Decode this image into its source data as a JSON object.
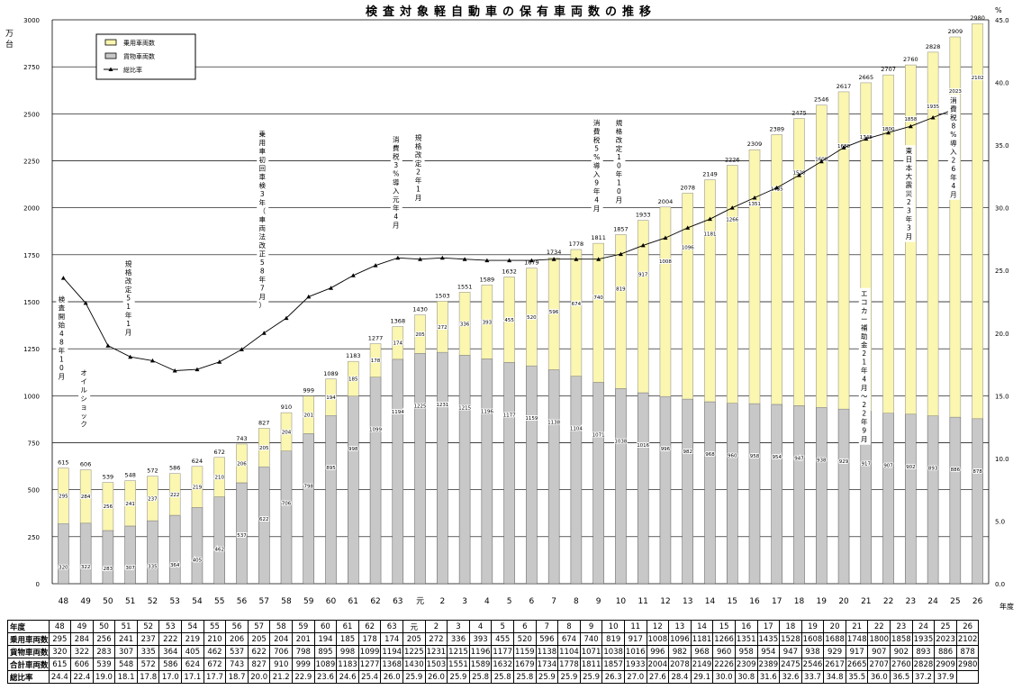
{
  "chart_data": {
    "type": "bar",
    "title": "検査対象軽自動車の保有車両数の推移",
    "left_unit": [
      "万",
      "台"
    ],
    "right_unit": "%",
    "xlabel": "年度",
    "ylim": [
      0,
      3000
    ],
    "y2lim": [
      0,
      45
    ],
    "y_ticks": [
      0,
      250,
      500,
      750,
      1000,
      1250,
      1500,
      1750,
      2000,
      2250,
      2500,
      2750,
      3000
    ],
    "y2_ticks": [
      "0.0",
      "5.0",
      "10.0",
      "15.0",
      "20.0",
      "25.0",
      "30.0",
      "35.0",
      "40.0",
      "45.0"
    ],
    "grid": true,
    "legend_position": "top-left",
    "colors": {
      "passenger": "#fbf6b0",
      "cargo": "#c8c8c8",
      "line": "#000000"
    },
    "categories": [
      "48",
      "49",
      "50",
      "51",
      "52",
      "53",
      "54",
      "55",
      "56",
      "57",
      "58",
      "59",
      "60",
      "61",
      "62",
      "63",
      "元",
      "2",
      "3",
      "4",
      "5",
      "6",
      "7",
      "8",
      "9",
      "10",
      "11",
      "12",
      "13",
      "14",
      "15",
      "16",
      "17",
      "18",
      "19",
      "20",
      "21",
      "22",
      "23",
      "24",
      "25",
      "26"
    ],
    "series": [
      {
        "name": "乗用車両数",
        "values": [
          295,
          284,
          256,
          241,
          237,
          222,
          219,
          210,
          206,
          205,
          204,
          201,
          194,
          185,
          178,
          174,
          205,
          272,
          336,
          393,
          455,
          520,
          596,
          674,
          740,
          819,
          917,
          1008,
          1096,
          1181,
          1266,
          1351,
          1435,
          1528,
          1608,
          1688,
          1748,
          1800,
          1858,
          1935,
          2023,
          2102
        ]
      },
      {
        "name": "貨物車両数",
        "values": [
          320,
          322,
          283,
          307,
          335,
          364,
          405,
          462,
          537,
          622,
          706,
          798,
          895,
          998,
          1099,
          1194,
          1225,
          1231,
          1215,
          1196,
          1177,
          1159,
          1138,
          1104,
          1071,
          1038,
          1016,
          996,
          982,
          968,
          960,
          958,
          954,
          947,
          938,
          929,
          917,
          907,
          902,
          893,
          886,
          878
        ]
      },
      {
        "name": "総比率",
        "axis": "right",
        "values": [
          24.4,
          22.4,
          19.0,
          18.1,
          17.8,
          17.0,
          17.1,
          17.7,
          18.7,
          20.0,
          21.2,
          22.9,
          23.6,
          24.6,
          25.4,
          26.0,
          25.9,
          26.0,
          25.9,
          25.8,
          25.8,
          25.8,
          25.9,
          25.9,
          25.9,
          26.3,
          27.0,
          27.6,
          28.4,
          29.1,
          30.0,
          30.8,
          31.6,
          32.6,
          33.7,
          34.8,
          35.5,
          36.0,
          36.5,
          37.2,
          37.9,
          null
        ]
      }
    ],
    "totals": [
      615,
      606,
      539,
      548,
      572,
      586,
      624,
      672,
      743,
      827,
      910,
      999,
      1089,
      1183,
      1277,
      1368,
      1430,
      1503,
      1551,
      1589,
      1632,
      1679,
      1734,
      1778,
      1811,
      1857,
      1933,
      2004,
      2078,
      2149,
      2226,
      2309,
      2389,
      2475,
      2546,
      2617,
      2665,
      2707,
      2760,
      2828,
      2909,
      2980
    ],
    "bar_value_labels": {
      "passenger": [
        "295",
        "284",
        "256",
        "241",
        "237",
        "222",
        "219",
        "210",
        "206",
        "205",
        "204",
        "201",
        "194",
        "185",
        "178",
        "174",
        "205",
        "272",
        "336",
        "393",
        "455",
        "520",
        "596",
        "674",
        "740",
        "819",
        "917",
        "1008",
        "1096",
        "1181",
        "1266",
        "1351",
        "1435",
        "1528",
        "1608",
        "1688",
        "1748",
        "1800",
        "1858",
        "1935",
        "2023",
        "2102"
      ],
      "cargo": [
        "320",
        "322",
        "283",
        "307",
        "335",
        "364",
        "405",
        "462",
        "537",
        "622",
        "706",
        "798",
        "895",
        "998",
        "1099",
        "1194",
        "1225",
        "1231",
        "1215",
        "1196",
        "1177",
        "1159",
        "1138",
        "1104",
        "1071",
        "1038",
        "1016",
        "996",
        "982",
        "968",
        "960",
        "958",
        "954",
        "947",
        "938",
        "929",
        "917",
        "907",
        "902",
        "893",
        "886",
        "878"
      ]
    },
    "annotations": [
      {
        "at": "48",
        "level": 1500,
        "text": "検査開始48年10月"
      },
      {
        "at": "49",
        "level": 1110,
        "text": "オイルショック"
      },
      {
        "at": "51",
        "level": 1690,
        "text": "規格改定51年1月"
      },
      {
        "at": "57",
        "level": 2380,
        "text": "乗用車初回車検3年（車両法改正58年7月）"
      },
      {
        "at": "63",
        "level": 2350,
        "text": "消費税3%導入元年4月"
      },
      {
        "at": "元",
        "level": 2360,
        "text": "規格改定2年1月"
      },
      {
        "at": "9",
        "level": 2440,
        "text": "消費税5%導入9年4月"
      },
      {
        "at": "10",
        "level": 2440,
        "text": "規格改定10年10月"
      },
      {
        "at": "21",
        "level": 1530,
        "text": "エコカー補助金21年4月～22年9月"
      },
      {
        "at": "23",
        "level": 2290,
        "text": "東日本大震災23年3月"
      },
      {
        "at": "25",
        "level": 2560,
        "text": "消費税8%導入26年4月"
      }
    ]
  },
  "legend": {
    "passenger": "乗用車両数",
    "cargo": "貨物車両数",
    "ratio": "総比率"
  },
  "table": {
    "header_label": "年度",
    "rows": [
      {
        "label": "乗用車両数",
        "values": [
          "295",
          "284",
          "256",
          "241",
          "237",
          "222",
          "219",
          "210",
          "206",
          "205",
          "204",
          "201",
          "194",
          "185",
          "178",
          "174",
          "205",
          "272",
          "336",
          "393",
          "455",
          "520",
          "596",
          "674",
          "740",
          "819",
          "917",
          "1008",
          "1096",
          "1181",
          "1266",
          "1351",
          "1435",
          "1528",
          "1608",
          "1688",
          "1748",
          "1800",
          "1858",
          "1935",
          "2023",
          "2102"
        ]
      },
      {
        "label": "貨物車両数",
        "values": [
          "320",
          "322",
          "283",
          "307",
          "335",
          "364",
          "405",
          "462",
          "537",
          "622",
          "706",
          "798",
          "895",
          "998",
          "1099",
          "1194",
          "1225",
          "1231",
          "1215",
          "1196",
          "1177",
          "1159",
          "1138",
          "1104",
          "1071",
          "1038",
          "1016",
          "996",
          "982",
          "968",
          "960",
          "958",
          "954",
          "947",
          "938",
          "929",
          "917",
          "907",
          "902",
          "893",
          "886",
          "878"
        ]
      },
      {
        "label": "合計車両数",
        "values": [
          "615",
          "606",
          "539",
          "548",
          "572",
          "586",
          "624",
          "672",
          "743",
          "827",
          "910",
          "999",
          "1089",
          "1183",
          "1277",
          "1368",
          "1430",
          "1503",
          "1551",
          "1589",
          "1632",
          "1679",
          "1734",
          "1778",
          "1811",
          "1857",
          "1933",
          "2004",
          "2078",
          "2149",
          "2226",
          "2309",
          "2389",
          "2475",
          "2546",
          "2617",
          "2665",
          "2707",
          "2760",
          "2828",
          "2909",
          "2980"
        ]
      },
      {
        "label": "総比率",
        "values": [
          "24.4",
          "22.4",
          "19.0",
          "18.1",
          "17.8",
          "17.0",
          "17.1",
          "17.7",
          "18.7",
          "20.0",
          "21.2",
          "22.9",
          "23.6",
          "24.6",
          "25.4",
          "26.0",
          "25.9",
          "26.0",
          "25.9",
          "25.8",
          "25.8",
          "25.8",
          "25.9",
          "25.9",
          "25.9",
          "26.3",
          "27.0",
          "27.6",
          "28.4",
          "29.1",
          "30.0",
          "30.8",
          "31.6",
          "32.6",
          "33.7",
          "34.8",
          "35.5",
          "36.0",
          "36.5",
          "37.2",
          "37.9",
          ""
        ]
      }
    ]
  }
}
